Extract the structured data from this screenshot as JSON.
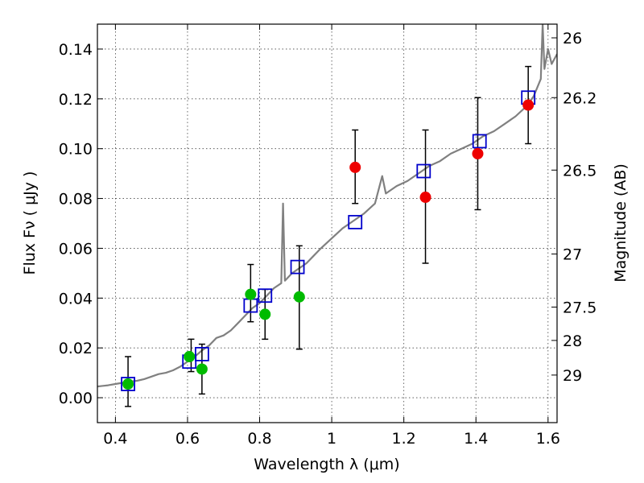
{
  "chart_data": {
    "type": "scatter",
    "xlabel": "Wavelength  λ (μm)",
    "ylabel": "Flux  Fν  ( μJy )",
    "ylabel_right": "Magnitude (AB)",
    "xlim": [
      0.35,
      1.625
    ],
    "ylim": [
      -0.01,
      0.15
    ],
    "grid": true,
    "x_ticks": [
      0.4,
      0.6,
      0.8,
      1.0,
      1.2,
      1.4,
      1.6
    ],
    "x_tick_labels": [
      "0.4",
      "0.6",
      "0.8",
      "1",
      "1.2",
      "1.4",
      "1.6"
    ],
    "y_ticks": [
      0.0,
      0.02,
      0.04,
      0.06,
      0.08,
      0.1,
      0.12,
      0.14
    ],
    "y_tick_labels": [
      "0.00",
      "0.02",
      "0.04",
      "0.06",
      "0.08",
      "0.10",
      "0.12",
      "0.14"
    ],
    "right_ticks": [
      {
        "flux": 0.1445,
        "label": "26"
      },
      {
        "flux": 0.1205,
        "label": "26.2"
      },
      {
        "flux": 0.0914,
        "label": "26.5"
      },
      {
        "flux": 0.0577,
        "label": "27"
      },
      {
        "flux": 0.0364,
        "label": "27.5"
      },
      {
        "flux": 0.023,
        "label": "28"
      },
      {
        "flux": 0.0091,
        "label": "29"
      }
    ],
    "series": [
      {
        "kind": "line",
        "color": "#808080",
        "points": [
          [
            0.35,
            0.0045
          ],
          [
            0.38,
            0.005
          ],
          [
            0.4,
            0.0055
          ],
          [
            0.42,
            0.006
          ],
          [
            0.44,
            0.0065
          ],
          [
            0.46,
            0.0068
          ],
          [
            0.48,
            0.0075
          ],
          [
            0.5,
            0.0085
          ],
          [
            0.52,
            0.0095
          ],
          [
            0.54,
            0.01
          ],
          [
            0.56,
            0.011
          ],
          [
            0.58,
            0.0125
          ],
          [
            0.6,
            0.0145
          ],
          [
            0.62,
            0.0165
          ],
          [
            0.64,
            0.019
          ],
          [
            0.66,
            0.021
          ],
          [
            0.68,
            0.024
          ],
          [
            0.7,
            0.025
          ],
          [
            0.72,
            0.027
          ],
          [
            0.74,
            0.03
          ],
          [
            0.76,
            0.033
          ],
          [
            0.78,
            0.036
          ],
          [
            0.8,
            0.038
          ],
          [
            0.82,
            0.041
          ],
          [
            0.84,
            0.044
          ],
          [
            0.86,
            0.046
          ],
          [
            0.865,
            0.078
          ],
          [
            0.87,
            0.047
          ],
          [
            0.89,
            0.05
          ],
          [
            0.91,
            0.052
          ],
          [
            0.93,
            0.054
          ],
          [
            0.95,
            0.057
          ],
          [
            0.97,
            0.06
          ],
          [
            1.0,
            0.064
          ],
          [
            1.03,
            0.068
          ],
          [
            1.06,
            0.071
          ],
          [
            1.09,
            0.074
          ],
          [
            1.12,
            0.078
          ],
          [
            1.14,
            0.089
          ],
          [
            1.15,
            0.082
          ],
          [
            1.18,
            0.085
          ],
          [
            1.21,
            0.087
          ],
          [
            1.24,
            0.09
          ],
          [
            1.27,
            0.093
          ],
          [
            1.3,
            0.095
          ],
          [
            1.33,
            0.098
          ],
          [
            1.36,
            0.1
          ],
          [
            1.39,
            0.102
          ],
          [
            1.42,
            0.105
          ],
          [
            1.45,
            0.107
          ],
          [
            1.48,
            0.11
          ],
          [
            1.51,
            0.113
          ],
          [
            1.54,
            0.117
          ],
          [
            1.56,
            0.121
          ],
          [
            1.58,
            0.128
          ],
          [
            1.585,
            0.15
          ],
          [
            1.59,
            0.132
          ],
          [
            1.6,
            0.14
          ],
          [
            1.61,
            0.134
          ],
          [
            1.625,
            0.138
          ]
        ]
      },
      {
        "kind": "open-square",
        "color": "#0000cc",
        "points": [
          [
            0.435,
            0.0055
          ],
          [
            0.605,
            0.0145
          ],
          [
            0.64,
            0.0175
          ],
          [
            0.775,
            0.037
          ],
          [
            0.815,
            0.041
          ],
          [
            0.905,
            0.0525
          ],
          [
            1.065,
            0.0705
          ],
          [
            1.255,
            0.091
          ],
          [
            1.41,
            0.103
          ],
          [
            1.545,
            0.1205
          ]
        ]
      },
      {
        "kind": "filled-circle",
        "color": "#00bb00",
        "points": [
          [
            0.435,
            0.0055
          ],
          [
            0.605,
            0.0165
          ],
          [
            0.64,
            0.0115
          ],
          [
            0.775,
            0.0415
          ],
          [
            0.815,
            0.0335
          ],
          [
            0.91,
            0.0405
          ]
        ]
      },
      {
        "kind": "filled-circle",
        "color": "#ee0000",
        "points": [
          [
            1.065,
            0.0925
          ],
          [
            1.26,
            0.0805
          ],
          [
            1.405,
            0.098
          ],
          [
            1.545,
            0.1175
          ]
        ]
      },
      {
        "kind": "errorbar",
        "color": "#000000",
        "bars": [
          {
            "x": 0.435,
            "low": -0.0035,
            "high": 0.0165
          },
          {
            "x": 0.61,
            "low": 0.0105,
            "high": 0.0235
          },
          {
            "x": 0.64,
            "low": 0.0015,
            "high": 0.0215
          },
          {
            "x": 0.775,
            "low": 0.0305,
            "high": 0.0535
          },
          {
            "x": 0.815,
            "low": 0.0235,
            "high": 0.0435
          },
          {
            "x": 0.91,
            "low": 0.0195,
            "high": 0.061
          },
          {
            "x": 1.065,
            "low": 0.078,
            "high": 0.1075
          },
          {
            "x": 1.26,
            "low": 0.054,
            "high": 0.1075
          },
          {
            "x": 1.405,
            "low": 0.0755,
            "high": 0.1205
          },
          {
            "x": 1.545,
            "low": 0.102,
            "high": 0.133
          }
        ]
      }
    ]
  }
}
